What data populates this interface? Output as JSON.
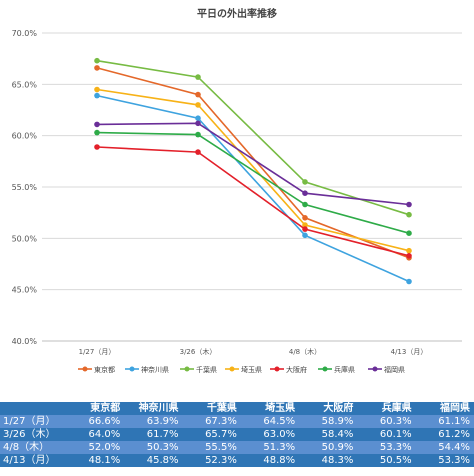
{
  "chart_data": {
    "type": "line",
    "title": "平日の外出率推移",
    "categories": [
      "1/27（月）",
      "3/26（木）",
      "4/8（木）",
      "4/13（月）"
    ],
    "y_tick_labels": [
      "70.0%",
      "65.0%",
      "60.0%",
      "55.0%",
      "50.0%",
      "45.0%",
      "40.0%"
    ],
    "ylim": [
      40,
      70
    ],
    "grid": true,
    "legend_position": "bottom",
    "series": [
      {
        "name": "東京都",
        "color": "#e4682a",
        "values": [
          66.6,
          64.0,
          52.0,
          48.1
        ]
      },
      {
        "name": "神奈川県",
        "color": "#3ea3df",
        "values": [
          63.9,
          61.7,
          50.3,
          45.8
        ]
      },
      {
        "name": "千葉県",
        "color": "#77bb43",
        "values": [
          67.3,
          65.7,
          55.5,
          52.3
        ]
      },
      {
        "name": "埼玉県",
        "color": "#f7b217",
        "values": [
          64.5,
          63.0,
          51.3,
          48.8
        ]
      },
      {
        "name": "大阪府",
        "color": "#e3202a",
        "values": [
          58.9,
          58.4,
          50.9,
          48.3
        ]
      },
      {
        "name": "兵庫県",
        "color": "#2eab48",
        "values": [
          60.3,
          60.1,
          53.3,
          50.5
        ]
      },
      {
        "name": "福岡県",
        "color": "#6a2e98",
        "values": [
          61.1,
          61.2,
          54.4,
          53.3
        ]
      }
    ]
  },
  "table": {
    "headers": [
      "東京都",
      "神奈川県",
      "千葉県",
      "埼玉県",
      "大阪府",
      "兵庫県",
      "福岡県"
    ],
    "rows": [
      {
        "label": "1/27（月）",
        "cells": [
          "66.6%",
          "63.9%",
          "67.3%",
          "64.5%",
          "58.9%",
          "60.3%",
          "61.1%"
        ]
      },
      {
        "label": "3/26（木）",
        "cells": [
          "64.0%",
          "61.7%",
          "65.7%",
          "63.0%",
          "58.4%",
          "60.1%",
          "61.2%"
        ]
      },
      {
        "label": "4/8（木）",
        "cells": [
          "52.0%",
          "50.3%",
          "55.5%",
          "51.3%",
          "50.9%",
          "53.3%",
          "54.4%"
        ]
      },
      {
        "label": "4/13（月）",
        "cells": [
          "48.1%",
          "45.8%",
          "52.3%",
          "48.8%",
          "48.3%",
          "50.5%",
          "53.3%"
        ]
      }
    ]
  }
}
